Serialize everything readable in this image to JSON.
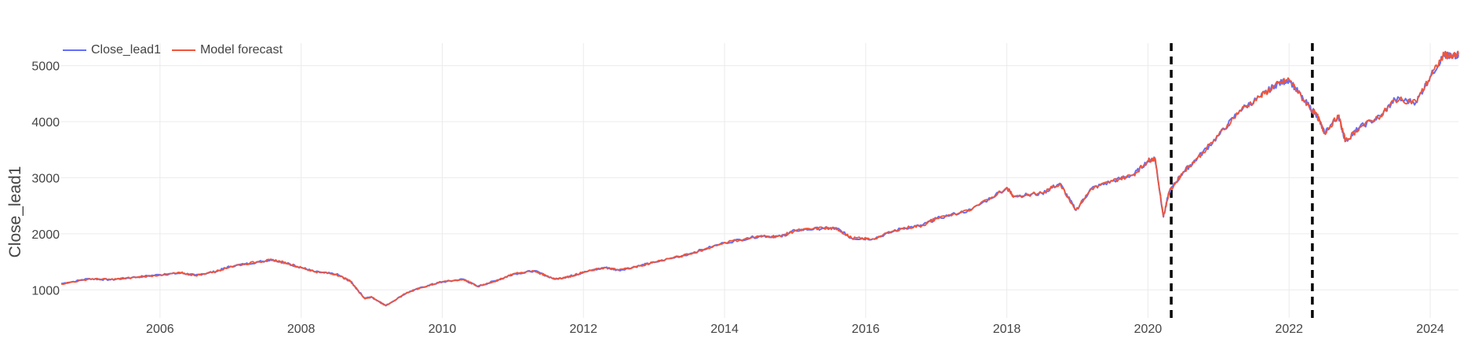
{
  "legend": {
    "items": [
      {
        "label": "Close_lead1",
        "color": "#636efa"
      },
      {
        "label": "Model forecast",
        "color": "#ef553b"
      }
    ]
  },
  "chart_data": {
    "type": "line",
    "title": "",
    "xlabel": "",
    "ylabel": "Close_lead1",
    "xlim": [
      2004.6,
      2024.4
    ],
    "ylim": [
      500,
      5400
    ],
    "x_ticks": [
      2006,
      2008,
      2010,
      2012,
      2014,
      2016,
      2018,
      2020,
      2022,
      2024
    ],
    "y_ticks": [
      1000,
      2000,
      3000,
      4000,
      5000
    ],
    "grid": true,
    "legend_position": "top-left",
    "vlines": [
      2020.33,
      2022.33
    ],
    "series": [
      {
        "name": "Close_lead1",
        "color": "#636efa",
        "x": [
          2004.6,
          2005.0,
          2005.3,
          2005.6,
          2006.0,
          2006.3,
          2006.5,
          2006.8,
          2007.0,
          2007.4,
          2007.6,
          2007.8,
          2008.0,
          2008.2,
          2008.5,
          2008.7,
          2008.9,
          2009.0,
          2009.2,
          2009.5,
          2009.8,
          2010.0,
          2010.3,
          2010.5,
          2010.8,
          2011.0,
          2011.3,
          2011.6,
          2011.8,
          2012.0,
          2012.3,
          2012.5,
          2012.8,
          2013.0,
          2013.5,
          2014.0,
          2014.5,
          2014.8,
          2015.0,
          2015.4,
          2015.6,
          2015.8,
          2016.1,
          2016.5,
          2016.8,
          2017.0,
          2017.5,
          2018.0,
          2018.1,
          2018.5,
          2018.75,
          2018.98,
          2019.2,
          2019.5,
          2019.8,
          2020.0,
          2020.1,
          2020.22,
          2020.3,
          2020.5,
          2020.7,
          2021.0,
          2021.3,
          2021.6,
          2021.8,
          2022.0,
          2022.2,
          2022.4,
          2022.5,
          2022.7,
          2022.8,
          2023.0,
          2023.3,
          2023.5,
          2023.8,
          2024.0,
          2024.2,
          2024.3,
          2024.4
        ],
        "values": [
          1110,
          1200,
          1180,
          1220,
          1270,
          1300,
          1260,
          1330,
          1420,
          1500,
          1540,
          1470,
          1400,
          1320,
          1280,
          1150,
          850,
          870,
          720,
          950,
          1080,
          1140,
          1190,
          1060,
          1180,
          1280,
          1340,
          1190,
          1240,
          1310,
          1400,
          1350,
          1430,
          1490,
          1640,
          1840,
          1960,
          1950,
          2060,
          2100,
          2090,
          1920,
          1910,
          2090,
          2150,
          2270,
          2430,
          2820,
          2670,
          2720,
          2900,
          2420,
          2810,
          2940,
          3060,
          3300,
          3350,
          2300,
          2750,
          3100,
          3350,
          3750,
          4200,
          4450,
          4650,
          4750,
          4400,
          4100,
          3800,
          4100,
          3650,
          3900,
          4100,
          4400,
          4350,
          4800,
          5200,
          5150,
          5200
        ]
      },
      {
        "name": "Model forecast",
        "color": "#ef553b",
        "x": [
          2004.6,
          2005.0,
          2005.3,
          2005.6,
          2006.0,
          2006.3,
          2006.5,
          2006.8,
          2007.0,
          2007.4,
          2007.6,
          2007.8,
          2008.0,
          2008.2,
          2008.5,
          2008.7,
          2008.9,
          2009.0,
          2009.2,
          2009.5,
          2009.8,
          2010.0,
          2010.3,
          2010.5,
          2010.8,
          2011.0,
          2011.3,
          2011.6,
          2011.8,
          2012.0,
          2012.3,
          2012.5,
          2012.8,
          2013.0,
          2013.5,
          2014.0,
          2014.5,
          2014.8,
          2015.0,
          2015.4,
          2015.6,
          2015.8,
          2016.1,
          2016.5,
          2016.8,
          2017.0,
          2017.5,
          2018.0,
          2018.1,
          2018.5,
          2018.75,
          2018.98,
          2019.2,
          2019.5,
          2019.8,
          2020.0,
          2020.1,
          2020.22,
          2020.3,
          2020.5,
          2020.7,
          2021.0,
          2021.3,
          2021.6,
          2021.8,
          2022.0,
          2022.2,
          2022.4,
          2022.5,
          2022.7,
          2022.8,
          2023.0,
          2023.3,
          2023.5,
          2023.8,
          2024.0,
          2024.2,
          2024.3,
          2024.4
        ],
        "values": [
          1105,
          1195,
          1185,
          1215,
          1265,
          1305,
          1255,
          1335,
          1415,
          1505,
          1535,
          1475,
          1395,
          1325,
          1275,
          1155,
          845,
          875,
          715,
          955,
          1075,
          1145,
          1185,
          1065,
          1175,
          1285,
          1335,
          1195,
          1235,
          1315,
          1395,
          1355,
          1425,
          1495,
          1635,
          1845,
          1955,
          1955,
          2055,
          2105,
          2085,
          1925,
          1905,
          2095,
          2145,
          2275,
          2425,
          2825,
          2665,
          2725,
          2895,
          2425,
          2805,
          2945,
          3055,
          3305,
          3345,
          2310,
          2745,
          3105,
          3345,
          3755,
          4195,
          4455,
          4645,
          4755,
          4395,
          4105,
          3795,
          4105,
          3655,
          3895,
          4105,
          4395,
          4355,
          4795,
          5205,
          5145,
          5205
        ]
      }
    ]
  }
}
